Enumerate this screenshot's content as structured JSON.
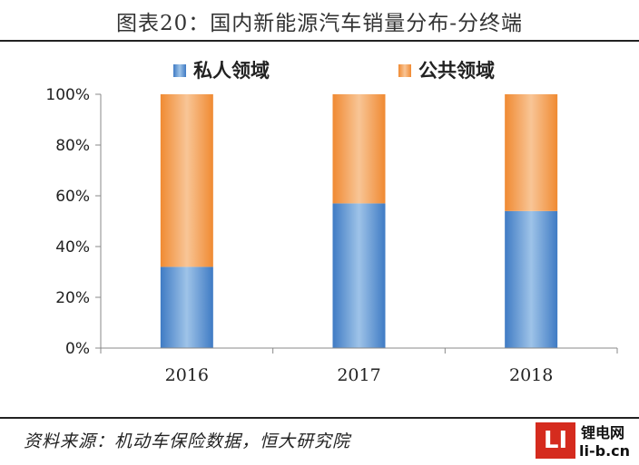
{
  "header": {
    "title": "图表20：国内新能源汽车销量分布-分终端"
  },
  "chart_data": {
    "type": "bar",
    "stacked": true,
    "categories": [
      "2016",
      "2017",
      "2018"
    ],
    "series": [
      {
        "name": "私人领域",
        "values": [
          32,
          57,
          54
        ],
        "color": "#5b8fc9"
      },
      {
        "name": "公共领域",
        "values": [
          68,
          43,
          46
        ],
        "color": "#f29a4a"
      }
    ],
    "ylim": [
      0,
      100
    ],
    "yticks": [
      "0%",
      "20%",
      "40%",
      "60%",
      "80%",
      "100%"
    ],
    "legend": "top",
    "grid": false
  },
  "footer": {
    "source": "资料来源：机动车保险数据，恒大研究院",
    "watermark_logo": "LI",
    "watermark_site_cn": "锂电网",
    "watermark_site_en": "li-b.cn"
  }
}
